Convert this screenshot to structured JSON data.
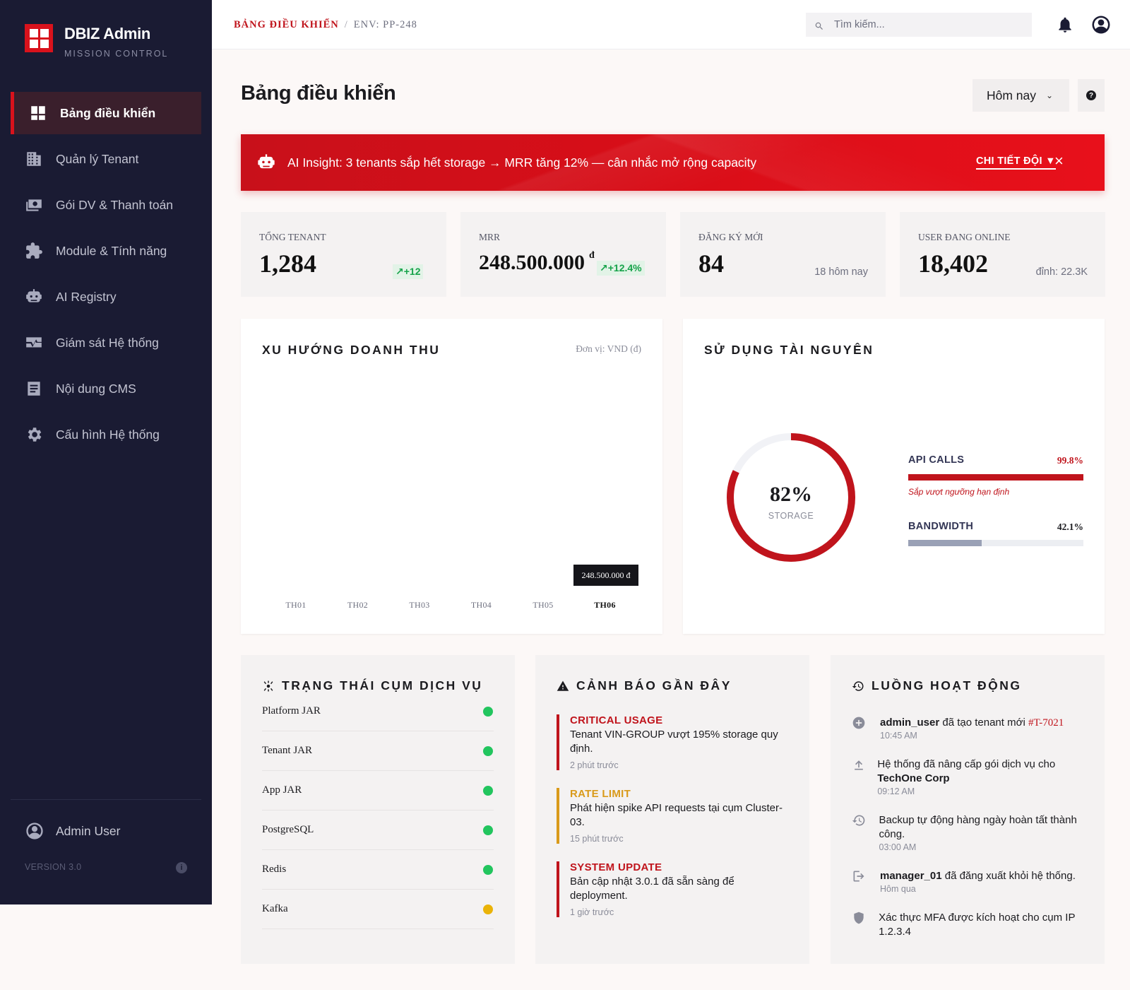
{
  "brand": {
    "title": "DBIZ Admin",
    "subtitle": "MISSION CONTROL"
  },
  "nav": [
    {
      "label": "Bảng điều khiển",
      "icon": "dashboard-icon",
      "active": true
    },
    {
      "label": "Quản lý Tenant",
      "icon": "building-icon"
    },
    {
      "label": "Gói DV & Thanh toán",
      "icon": "payments-icon"
    },
    {
      "label": "Module & Tính năng",
      "icon": "puzzle-icon"
    },
    {
      "label": "AI Registry",
      "icon": "robot-icon"
    },
    {
      "label": "Giám sát Hệ thống",
      "icon": "monitor-heart-icon"
    },
    {
      "label": "Nội dung CMS",
      "icon": "article-icon"
    },
    {
      "label": "Cấu hình Hệ thống",
      "icon": "gear-icon"
    }
  ],
  "sidebar_footer": {
    "user": "Admin User",
    "version": "VERSION 3.0"
  },
  "topbar": {
    "breadcrumb_current": "BẢNG ĐIỀU KHIỂN",
    "breadcrumb_sep": "/",
    "breadcrumb_env": "ENV: PP-248",
    "search_placeholder": "Tìm kiếm..."
  },
  "page": {
    "title": "Bảng điều khiển",
    "date_range": "Hôm nay",
    "help": "?"
  },
  "banner": {
    "text": "AI Insight: 3 tenants sắp hết storage → MRR tăng 12% — cân nhắc mở rộng capacity",
    "link": "CHI TIẾT ĐỘI ▼",
    "close": "×"
  },
  "stats": [
    {
      "label": "TỔNG TENANT",
      "value": "1,284",
      "delta": "+12"
    },
    {
      "label": "MRR",
      "value": "248.500.000",
      "currency": "đ",
      "delta": "+12.4%"
    },
    {
      "label": "ĐĂNG KÝ MỚI",
      "value": "84",
      "note": "18 hôm nay"
    },
    {
      "label": "USER ĐANG ONLINE",
      "value": "18,402",
      "note": "đỉnh: 22.3K"
    }
  ],
  "revenue": {
    "title": "XU HƯỚNG DOANH THU",
    "unit": "Đơn vị: VND (đ)",
    "tooltip": "248.500.000 đ"
  },
  "chart_data": {
    "type": "bar",
    "title": "XU HƯỚNG DOANH THU",
    "categories": [
      "TH01",
      "TH02",
      "TH03",
      "TH04",
      "TH05",
      "TH06"
    ],
    "active_category": "TH06",
    "annotations": [
      "248.500.000 đ"
    ],
    "ylabel": "Đơn vị: VND (đ)"
  },
  "resources": {
    "title": "SỬ DỤNG TÀI NGUYÊN",
    "storage_pct": "82%",
    "storage_value": 82,
    "storage_label": "STORAGE",
    "colors": {
      "accent": "#c0141c",
      "track": "#f1f2f6",
      "bandwidth": "#9aa1b6"
    },
    "bars": [
      {
        "name": "API CALLS",
        "value": "99.8%",
        "fill": 99.8,
        "warning": "Sắp vượt ngưỡng hạn định"
      },
      {
        "name": "BANDWIDTH",
        "value": "42.1%",
        "fill": 42.1
      }
    ]
  },
  "cluster": {
    "title": "TRẠNG THÁI CỤM DỊCH VỤ",
    "services": [
      {
        "name": "Platform JAR",
        "status": "ok"
      },
      {
        "name": "Tenant JAR",
        "status": "ok"
      },
      {
        "name": "App JAR",
        "status": "ok"
      },
      {
        "name": "PostgreSQL",
        "status": "ok"
      },
      {
        "name": "Redis",
        "status": "ok"
      },
      {
        "name": "Kafka",
        "status": "warn"
      }
    ],
    "status_colors": {
      "ok": "#22c55e",
      "warn": "#eab308"
    }
  },
  "alerts": {
    "title": "CẢNH BÁO GẦN ĐÂY",
    "items": [
      {
        "title": "CRITICAL USAGE",
        "body": "Tenant VIN-GROUP vượt 195% storage quy định.",
        "time": "2 phút trước",
        "color": "#c0141c"
      },
      {
        "title": "RATE LIMIT",
        "body": "Phát hiện spike API requests tại cụm Cluster-03.",
        "time": "15 phút trước",
        "color": "#d99a1a"
      },
      {
        "title": "SYSTEM UPDATE",
        "body": "Bản cập nhật 3.0.1 đã sẵn sàng để deployment.",
        "time": "1 giờ trước",
        "color": "#c0141c"
      }
    ]
  },
  "activity": {
    "title": "LUỒNG HOẠT ĐỘNG",
    "items": [
      {
        "icon": "add-circle-icon",
        "actor": "admin_user",
        "text": " đã tạo tenant mới ",
        "ref": "#T-7021",
        "time": "10:45 AM"
      },
      {
        "icon": "upload-icon",
        "text": "Hệ thống đã nâng cấp gói dịch vụ cho ",
        "actor_end": "TechOne Corp",
        "time": "09:12 AM"
      },
      {
        "icon": "history-icon",
        "text": "Backup tự động hàng ngày hoàn tất thành công.",
        "time": "03:00 AM"
      },
      {
        "icon": "logout-icon",
        "actor": "manager_01",
        "text": " đã đăng xuất khỏi hệ thống.",
        "time": "Hôm qua"
      },
      {
        "icon": "shield-icon",
        "text": "Xác thực MFA được kích hoạt cho cụm IP 1.2.3.4"
      }
    ]
  }
}
